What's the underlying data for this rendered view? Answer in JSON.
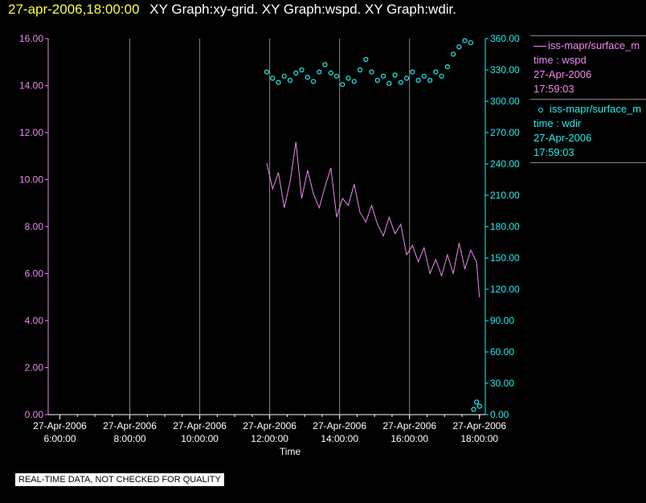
{
  "header": {
    "timestamp": "27-apr-2006,18:00:00",
    "graphs": "XY Graph:xy-grid.  XY Graph:wspd.  XY Graph:wdir."
  },
  "legend": {
    "wspd": {
      "name": "iss-mapr/surface_m",
      "field": "time : wspd",
      "date": "27-Apr-2006",
      "time": "17:59:03"
    },
    "wdir": {
      "name": "iss-mapr/surface_m",
      "field": "time : wdir",
      "date": "27-Apr-2006",
      "time": "17:59:03"
    }
  },
  "disclaimer": "REAL-TIME DATA, NOT CHECKED FOR QUALITY",
  "colors": {
    "wspd": "#ee88ee",
    "wdir": "#22eeee",
    "background": "#000000",
    "grid": "#888888",
    "title_time": "#ffff33"
  },
  "chart_data": {
    "type": "line",
    "xlabel": "Time",
    "x_range": [
      "2006-04-27 05:40",
      "2006-04-27 18:10"
    ],
    "x_ticks": [
      {
        "date": "27-Apr-2006",
        "time": "6:00:00"
      },
      {
        "date": "27-Apr-2006",
        "time": "8:00:00"
      },
      {
        "date": "27-Apr-2006",
        "time": "10:00:00"
      },
      {
        "date": "27-Apr-2006",
        "time": "12:00:00"
      },
      {
        "date": "27-Apr-2006",
        "time": "14:00:00"
      },
      {
        "date": "27-Apr-2006",
        "time": "16:00:00"
      },
      {
        "date": "27-Apr-2006",
        "time": "18:00:00"
      }
    ],
    "y_left": {
      "range": [
        0,
        16
      ],
      "ticks": [
        "0.00",
        "2.00",
        "4.00",
        "6.00",
        "8.00",
        "10.00",
        "12.00",
        "14.00",
        "16.00"
      ]
    },
    "y_right": {
      "range": [
        0,
        360
      ],
      "ticks": [
        "0.00",
        "30.00",
        "60.00",
        "90.00",
        "120.00",
        "150.00",
        "180.00",
        "210.00",
        "240.00",
        "270.00",
        "300.00",
        "330.00",
        "360.00"
      ]
    },
    "grid": "vertical",
    "legend_position": "right",
    "series": [
      {
        "name": "wspd",
        "axis": "left",
        "style": "line",
        "points": [
          [
            "11:55",
            10.7
          ],
          [
            "12:05",
            9.6
          ],
          [
            "12:15",
            10.3
          ],
          [
            "12:25",
            8.8
          ],
          [
            "12:35",
            9.9
          ],
          [
            "12:45",
            11.6
          ],
          [
            "12:55",
            9.2
          ],
          [
            "13:05",
            10.4
          ],
          [
            "13:15",
            9.4
          ],
          [
            "13:25",
            8.8
          ],
          [
            "13:35",
            9.7
          ],
          [
            "13:45",
            10.5
          ],
          [
            "13:55",
            8.4
          ],
          [
            "14:05",
            9.2
          ],
          [
            "14:15",
            8.9
          ],
          [
            "14:25",
            9.8
          ],
          [
            "14:35",
            8.6
          ],
          [
            "14:45",
            8.2
          ],
          [
            "14:55",
            8.9
          ],
          [
            "15:05",
            8.1
          ],
          [
            "15:15",
            7.6
          ],
          [
            "15:25",
            8.4
          ],
          [
            "15:35",
            7.7
          ],
          [
            "15:45",
            8.1
          ],
          [
            "15:55",
            6.8
          ],
          [
            "16:05",
            7.2
          ],
          [
            "16:15",
            6.5
          ],
          [
            "16:25",
            7.1
          ],
          [
            "16:35",
            6.0
          ],
          [
            "16:45",
            6.6
          ],
          [
            "16:55",
            5.9
          ],
          [
            "17:05",
            6.8
          ],
          [
            "17:15",
            6.0
          ],
          [
            "17:25",
            7.3
          ],
          [
            "17:35",
            6.2
          ],
          [
            "17:45",
            7.0
          ],
          [
            "17:55",
            6.5
          ],
          [
            "18:00",
            5.0
          ]
        ]
      },
      {
        "name": "wdir",
        "axis": "right",
        "style": "scatter",
        "points": [
          [
            "11:55",
            328
          ],
          [
            "12:05",
            322
          ],
          [
            "12:15",
            318
          ],
          [
            "12:25",
            324
          ],
          [
            "12:35",
            320
          ],
          [
            "12:45",
            327
          ],
          [
            "12:55",
            330
          ],
          [
            "13:05",
            323
          ],
          [
            "13:15",
            319
          ],
          [
            "13:25",
            328
          ],
          [
            "13:35",
            335
          ],
          [
            "13:45",
            327
          ],
          [
            "13:55",
            324
          ],
          [
            "14:05",
            316
          ],
          [
            "14:15",
            322
          ],
          [
            "14:25",
            319
          ],
          [
            "14:35",
            330
          ],
          [
            "14:45",
            340
          ],
          [
            "14:55",
            328
          ],
          [
            "15:05",
            320
          ],
          [
            "15:15",
            324
          ],
          [
            "15:25",
            317
          ],
          [
            "15:35",
            325
          ],
          [
            "15:45",
            318
          ],
          [
            "15:55",
            322
          ],
          [
            "16:05",
            328
          ],
          [
            "16:15",
            320
          ],
          [
            "16:25",
            324
          ],
          [
            "16:35",
            320
          ],
          [
            "16:45",
            328
          ],
          [
            "16:55",
            324
          ],
          [
            "17:05",
            333
          ],
          [
            "17:15",
            345
          ],
          [
            "17:25",
            352
          ],
          [
            "17:35",
            358
          ],
          [
            "17:45",
            356
          ],
          [
            "17:50",
            5
          ],
          [
            "17:55",
            12
          ],
          [
            "18:00",
            8
          ]
        ]
      }
    ]
  }
}
